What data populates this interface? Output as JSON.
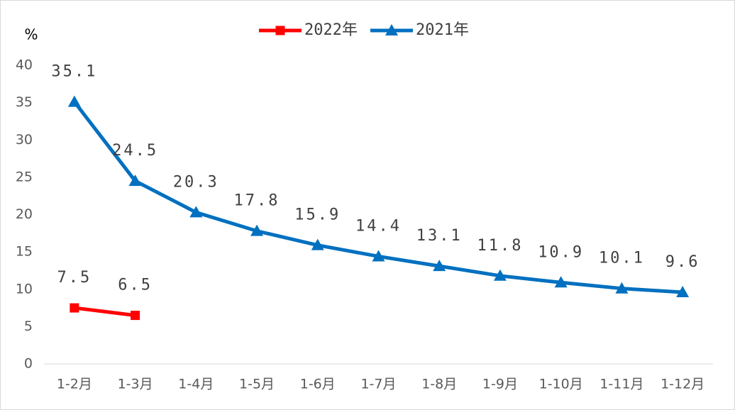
{
  "chart_data": {
    "type": "line",
    "y_label": "%",
    "categories": [
      "1-2月",
      "1-3月",
      "1-4月",
      "1-5月",
      "1-6月",
      "1-7月",
      "1-8月",
      "1-9月",
      "1-10月",
      "1-11月",
      "1-12月"
    ],
    "series": [
      {
        "name": "2022年",
        "color": "#ff0000",
        "marker": "square",
        "values": [
          7.5,
          6.5,
          null,
          null,
          null,
          null,
          null,
          null,
          null,
          null,
          null
        ]
      },
      {
        "name": "2021年",
        "color": "#0070c0",
        "marker": "triangle",
        "values": [
          35.1,
          24.5,
          20.3,
          17.8,
          15.9,
          14.4,
          13.1,
          11.8,
          10.9,
          10.1,
          9.6
        ]
      }
    ],
    "ylim": [
      0,
      40
    ],
    "yticks": [
      0,
      5,
      10,
      15,
      20,
      25,
      30,
      35,
      40
    ],
    "grid": false,
    "legend": "top"
  }
}
